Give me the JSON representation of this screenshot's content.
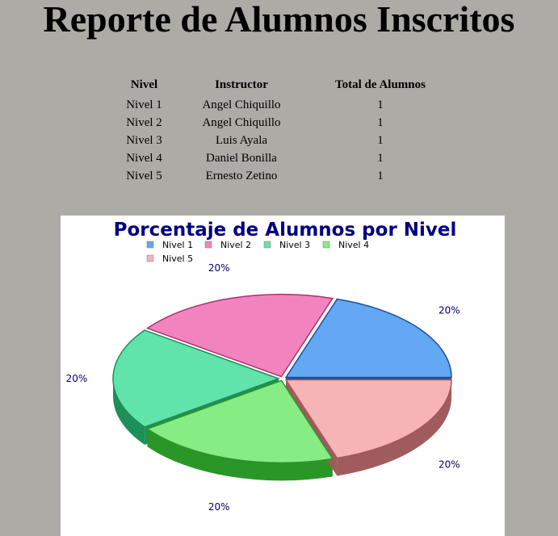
{
  "page": {
    "title": "Reporte de Alumnos Inscritos"
  },
  "table": {
    "headers": [
      "Nivel",
      "Instructor",
      "Total de Alumnos"
    ],
    "rows": [
      [
        "Nivel 1",
        "Angel Chiquillo",
        "1"
      ],
      [
        "Nivel 2",
        "Angel Chiquillo",
        "1"
      ],
      [
        "Nivel 3",
        "Luis Ayala",
        "1"
      ],
      [
        "Nivel 4",
        "Daniel Bonilla",
        "1"
      ],
      [
        "Nivel 5",
        "Ernesto Zetino",
        "1"
      ]
    ]
  },
  "chart_data": {
    "type": "pie",
    "title": "Porcentaje de Alumnos por Nivel",
    "style": "3d-exploded",
    "legend_position": "top",
    "categories": [
      "Nivel 1",
      "Nivel 2",
      "Nivel 3",
      "Nivel 4",
      "Nivel 5"
    ],
    "values": [
      1,
      1,
      1,
      1,
      1
    ],
    "labels": [
      "20%",
      "20%",
      "20%",
      "20%",
      "20%"
    ],
    "colors": [
      "#62a8f2",
      "#f283be",
      "#60e4ab",
      "#86ec84",
      "#f7b4b5"
    ],
    "side_colors": [
      "#1c4f9f",
      "#a7336e",
      "#1f8f58",
      "#2b9628",
      "#a05c5d"
    ]
  }
}
